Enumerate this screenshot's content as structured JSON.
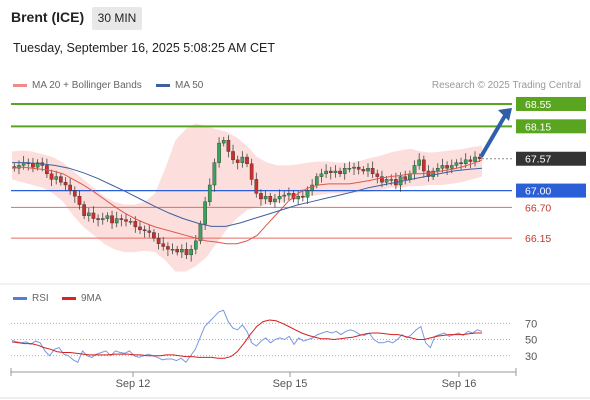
{
  "header": {
    "instrument": "Brent (ICE)",
    "timeframe": "30 MIN",
    "datetime": "Tuesday, September 16, 2025 5:08:25 AM CET"
  },
  "legend": {
    "ma20_bb": "MA 20 + Bollinger Bands",
    "ma50": "MA 50",
    "credit": "Research © 2025 Trading Central",
    "rsi": "RSI",
    "rsi_ma": "9MA"
  },
  "colors": {
    "up": "#3aa35a",
    "down": "#c9302c",
    "ma20": "#e0554f",
    "bb_fill": "#fcd9d6",
    "ma50": "#3f5f9f",
    "resistance": "#5aa51f",
    "pivot": "#2a5fd8",
    "support": "#e86a66",
    "current": "#333333",
    "arrow": "#2e5fa8"
  },
  "chart_data": [
    {
      "type": "candlestick",
      "title": "",
      "xlabel": "",
      "ylabel": "",
      "x_ticks": [
        "Sep 12",
        "Sep 15",
        "Sep 16"
      ],
      "ylim": [
        65.4,
        68.8
      ],
      "levels": [
        {
          "value": 68.55,
          "label": "68.55",
          "kind": "resistance"
        },
        {
          "value": 68.15,
          "label": "68.15",
          "kind": "resistance"
        },
        {
          "value": 67.57,
          "label": "67.57",
          "kind": "current"
        },
        {
          "value": 67.0,
          "label": "67.00",
          "kind": "pivot"
        },
        {
          "value": 66.7,
          "label": "66.70",
          "kind": "support"
        },
        {
          "value": 66.15,
          "label": "66.15",
          "kind": "support"
        }
      ],
      "arrow": {
        "from": 67.57,
        "to": 68.55
      },
      "closes": [
        67.4,
        67.45,
        67.5,
        67.48,
        67.42,
        67.5,
        67.45,
        67.3,
        67.2,
        67.25,
        67.15,
        67.1,
        67.0,
        66.9,
        66.75,
        66.55,
        66.6,
        66.5,
        66.48,
        66.5,
        66.55,
        66.42,
        66.5,
        66.48,
        66.45,
        66.45,
        66.35,
        66.3,
        66.28,
        66.25,
        66.15,
        66.05,
        66.0,
        65.95,
        65.95,
        65.9,
        65.95,
        65.85,
        65.95,
        66.1,
        66.4,
        66.8,
        67.1,
        67.5,
        67.85,
        67.9,
        67.7,
        67.55,
        67.5,
        67.6,
        67.48,
        67.2,
        66.95,
        66.85,
        66.9,
        66.8,
        66.85,
        66.9,
        66.92,
        66.95,
        66.85,
        66.9,
        66.88,
        67.0,
        67.1,
        67.25,
        67.3,
        67.35,
        67.32,
        67.35,
        67.3,
        67.4,
        67.4,
        67.42,
        67.38,
        67.35,
        67.4,
        67.3,
        67.25,
        67.15,
        67.2,
        67.2,
        67.1,
        67.25,
        67.2,
        67.3,
        67.45,
        67.55,
        67.35,
        67.25,
        67.35,
        67.4,
        67.45,
        67.4,
        67.45,
        67.5,
        67.48,
        67.55,
        67.52,
        67.6,
        67.57
      ],
      "ma20": [
        67.4,
        67.42,
        67.4,
        67.38,
        67.35,
        67.3,
        67.2,
        67.1,
        66.98,
        66.85,
        66.72,
        66.6,
        66.5,
        66.42,
        66.35,
        66.3,
        66.25,
        66.2,
        66.15,
        66.1,
        66.08,
        66.05,
        66.05,
        66.1,
        66.2,
        66.4,
        66.6,
        66.8,
        66.95,
        67.05,
        67.1,
        67.12,
        67.12,
        67.12,
        67.15,
        67.18,
        67.22,
        67.25,
        67.27,
        67.3,
        67.3,
        67.32,
        67.35,
        67.38,
        67.42,
        67.48,
        67.55
      ],
      "bb_upper": [
        67.7,
        67.72,
        67.7,
        67.65,
        67.6,
        67.5,
        67.35,
        67.2,
        67.05,
        66.9,
        66.8,
        66.75,
        66.75,
        66.8,
        66.95,
        67.4,
        67.9,
        68.1,
        68.2,
        68.15,
        68.1,
        68.05,
        67.95,
        67.8,
        67.6,
        67.5,
        67.45,
        67.45,
        67.47,
        67.5,
        67.52,
        67.52,
        67.5,
        67.5,
        67.53,
        67.58,
        67.62,
        67.68,
        67.72,
        67.75,
        67.7,
        67.68,
        67.7,
        67.72,
        67.74,
        67.78,
        67.8
      ],
      "bb_lower": [
        67.2,
        67.15,
        67.1,
        67.05,
        66.95,
        66.8,
        66.55,
        66.35,
        66.2,
        66.05,
        65.95,
        65.9,
        65.9,
        65.92,
        65.9,
        65.75,
        65.55,
        65.55,
        65.65,
        65.8,
        66.05,
        66.3,
        66.5,
        66.65,
        66.7,
        66.75,
        66.78,
        66.82,
        66.85,
        66.9,
        66.92,
        66.95,
        66.95,
        66.95,
        66.97,
        66.98,
        67.0,
        67.05,
        67.05,
        67.08,
        67.08,
        67.1,
        67.1,
        67.12,
        67.15,
        67.2,
        67.25
      ],
      "ma50": [
        67.5,
        67.5,
        67.48,
        67.45,
        67.4,
        67.32,
        67.22,
        67.1,
        66.98,
        66.85,
        66.72,
        66.6,
        66.5,
        66.42,
        66.36,
        66.36,
        66.42,
        66.5,
        66.58,
        66.66,
        66.74,
        66.8,
        66.86,
        66.92,
        66.98,
        67.05,
        67.1,
        67.15,
        67.2,
        67.25,
        67.3,
        67.35,
        67.38,
        67.4
      ]
    },
    {
      "type": "line",
      "title": "",
      "y_ticks": [
        70,
        50,
        30
      ],
      "ylim": [
        10,
        90
      ],
      "series": [
        {
          "name": "RSI",
          "values": [
            49,
            47,
            46,
            47,
            44,
            48,
            46,
            36,
            30,
            38,
            40,
            32,
            30,
            25,
            22,
            36,
            30,
            28,
            32,
            34,
            36,
            30,
            36,
            34,
            33,
            36,
            30,
            28,
            30,
            32,
            30,
            28,
            25,
            26,
            26,
            24,
            27,
            22,
            30,
            38,
            52,
            66,
            72,
            78,
            84,
            86,
            72,
            64,
            62,
            68,
            60,
            46,
            42,
            48,
            52,
            46,
            50,
            52,
            50,
            54,
            44,
            52,
            48,
            50,
            52,
            56,
            58,
            60,
            58,
            60,
            56,
            60,
            62,
            60,
            56,
            55,
            58,
            50,
            46,
            46,
            48,
            46,
            50,
            56,
            52,
            56,
            62,
            66,
            46,
            40,
            54,
            56,
            58,
            54,
            56,
            58,
            55,
            60,
            58,
            62,
            60
          ]
        },
        {
          "name": "9MA",
          "values": [
            47,
            46,
            45,
            45,
            43,
            40,
            38,
            35,
            34,
            34,
            33,
            32,
            31,
            31,
            31,
            31,
            32,
            32,
            32,
            31,
            31,
            30,
            30,
            30,
            31,
            31,
            30,
            29,
            29,
            28,
            28,
            28,
            27,
            27,
            29,
            35,
            45,
            56,
            66,
            72,
            74,
            73,
            70,
            66,
            62,
            58,
            55,
            53,
            51,
            51,
            50,
            51,
            52,
            53,
            55,
            57,
            58,
            58,
            57,
            56,
            56,
            54,
            52,
            50,
            50,
            52,
            54,
            55,
            56,
            56,
            56,
            57,
            58,
            58
          ]
        }
      ]
    }
  ]
}
